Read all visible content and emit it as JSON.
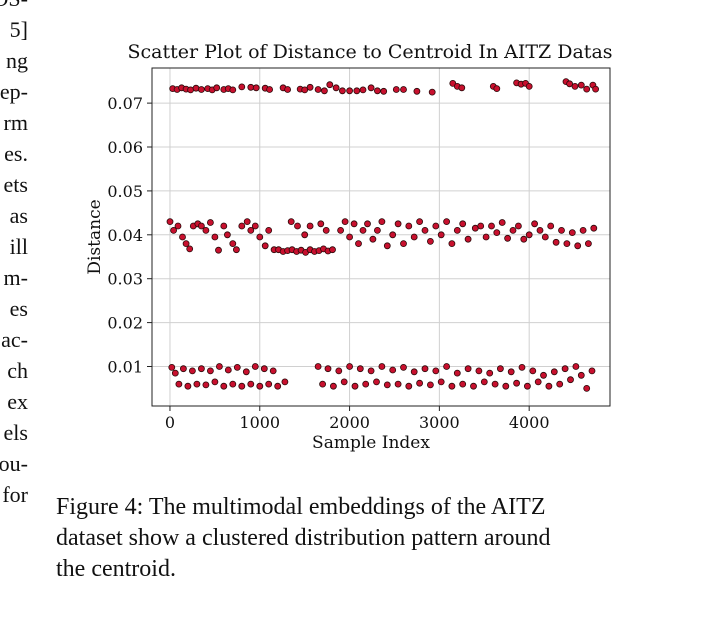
{
  "left_column_fragments": [
    "OS-",
    "5]",
    "ng",
    "ep-",
    "rm",
    "es.",
    "ets",
    "as",
    "ill",
    "m-",
    "es",
    "ac-",
    "ch",
    "ex",
    "els",
    "ou-",
    "for"
  ],
  "figure": {
    "caption_lines": [
      "Figure 4: The multimodal embeddings of the AITZ",
      "dataset show a clustered distribution pattern around",
      "the centroid."
    ]
  },
  "chart_data": {
    "type": "scatter",
    "title": "Scatter Plot of Distance to Centroid In AITZ Datas",
    "xlabel": "Sample Index",
    "ylabel": "Distance",
    "xlim": [
      -200,
      4900
    ],
    "ylim": [
      0.001,
      0.078
    ],
    "xticks": [
      0,
      1000,
      2000,
      3000,
      4000
    ],
    "xtick_labels": [
      "0",
      "1000",
      "2000",
      "3000",
      "4000"
    ],
    "yticks": [
      0.01,
      0.02,
      0.03,
      0.04,
      0.05,
      0.06,
      0.07
    ],
    "ytick_labels": [
      "0.01",
      "0.02",
      "0.03",
      "0.04",
      "0.05",
      "0.06",
      "0.07"
    ],
    "grid": true,
    "colors": {
      "marker_fill": "#c8102e",
      "marker_edge": "#2a0a0a",
      "grid": "#d0d0d0"
    },
    "series": [
      {
        "points": [
          [
            30,
            0.0733
          ],
          [
            80,
            0.0731
          ],
          [
            130,
            0.0735
          ],
          [
            180,
            0.0732
          ],
          [
            230,
            0.073
          ],
          [
            290,
            0.0734
          ],
          [
            350,
            0.0731
          ],
          [
            420,
            0.0733
          ],
          [
            470,
            0.073
          ],
          [
            520,
            0.0735
          ],
          [
            600,
            0.0731
          ],
          [
            650,
            0.0733
          ],
          [
            700,
            0.073
          ],
          [
            800,
            0.0737
          ],
          [
            900,
            0.0736
          ],
          [
            960,
            0.0735
          ],
          [
            1060,
            0.0734
          ],
          [
            1110,
            0.0731
          ],
          [
            1260,
            0.0735
          ],
          [
            1310,
            0.0731
          ],
          [
            1450,
            0.0732
          ],
          [
            1500,
            0.073
          ],
          [
            1560,
            0.0736
          ],
          [
            1650,
            0.0731
          ],
          [
            1720,
            0.0728
          ],
          [
            1780,
            0.0742
          ],
          [
            1850,
            0.0735
          ],
          [
            1920,
            0.0728
          ],
          [
            2000,
            0.0728
          ],
          [
            2080,
            0.0728
          ],
          [
            2150,
            0.073
          ],
          [
            2240,
            0.0735
          ],
          [
            2310,
            0.0728
          ],
          [
            2380,
            0.0727
          ],
          [
            2520,
            0.0731
          ],
          [
            2600,
            0.0731
          ],
          [
            2750,
            0.0727
          ],
          [
            2920,
            0.0725
          ],
          [
            3150,
            0.0745
          ],
          [
            3200,
            0.0738
          ],
          [
            3250,
            0.0735
          ],
          [
            3600,
            0.0738
          ],
          [
            3640,
            0.0733
          ],
          [
            3860,
            0.0746
          ],
          [
            3910,
            0.0743
          ],
          [
            3960,
            0.0745
          ],
          [
            4000,
            0.0738
          ],
          [
            4410,
            0.0749
          ],
          [
            4450,
            0.0744
          ],
          [
            4510,
            0.0738
          ],
          [
            4580,
            0.0741
          ],
          [
            4640,
            0.0732
          ],
          [
            4710,
            0.0741
          ],
          [
            4740,
            0.0732
          ],
          [
            0,
            0.043
          ],
          [
            40,
            0.041
          ],
          [
            90,
            0.042
          ],
          [
            140,
            0.0395
          ],
          [
            180,
            0.038
          ],
          [
            220,
            0.0368
          ],
          [
            260,
            0.042
          ],
          [
            310,
            0.0425
          ],
          [
            350,
            0.042
          ],
          [
            400,
            0.041
          ],
          [
            450,
            0.0428
          ],
          [
            500,
            0.0395
          ],
          [
            540,
            0.0365
          ],
          [
            600,
            0.042
          ],
          [
            640,
            0.04
          ],
          [
            700,
            0.038
          ],
          [
            740,
            0.0366
          ],
          [
            800,
            0.042
          ],
          [
            860,
            0.043
          ],
          [
            900,
            0.041
          ],
          [
            950,
            0.042
          ],
          [
            1000,
            0.0395
          ],
          [
            1060,
            0.0375
          ],
          [
            1100,
            0.041
          ],
          [
            1160,
            0.0366
          ],
          [
            1210,
            0.0366
          ],
          [
            1260,
            0.0362
          ],
          [
            1310,
            0.0364
          ],
          [
            1360,
            0.0366
          ],
          [
            1410,
            0.0362
          ],
          [
            1460,
            0.0365
          ],
          [
            1510,
            0.036
          ],
          [
            1560,
            0.0366
          ],
          [
            1610,
            0.0362
          ],
          [
            1660,
            0.0364
          ],
          [
            1710,
            0.0368
          ],
          [
            1760,
            0.0363
          ],
          [
            1810,
            0.0366
          ],
          [
            1350,
            0.043
          ],
          [
            1420,
            0.042
          ],
          [
            1500,
            0.04
          ],
          [
            1560,
            0.042
          ],
          [
            1680,
            0.0425
          ],
          [
            1740,
            0.041
          ],
          [
            1900,
            0.041
          ],
          [
            1950,
            0.043
          ],
          [
            2000,
            0.0395
          ],
          [
            2050,
            0.0425
          ],
          [
            2100,
            0.038
          ],
          [
            2150,
            0.041
          ],
          [
            2200,
            0.0425
          ],
          [
            2260,
            0.039
          ],
          [
            2310,
            0.041
          ],
          [
            2360,
            0.043
          ],
          [
            2420,
            0.0375
          ],
          [
            2480,
            0.04
          ],
          [
            2540,
            0.0425
          ],
          [
            2600,
            0.038
          ],
          [
            2660,
            0.042
          ],
          [
            2720,
            0.0395
          ],
          [
            2780,
            0.043
          ],
          [
            2840,
            0.041
          ],
          [
            2900,
            0.0385
          ],
          [
            2960,
            0.042
          ],
          [
            3020,
            0.04
          ],
          [
            3080,
            0.043
          ],
          [
            3140,
            0.038
          ],
          [
            3200,
            0.041
          ],
          [
            3260,
            0.0425
          ],
          [
            3320,
            0.039
          ],
          [
            3400,
            0.0415
          ],
          [
            3460,
            0.042
          ],
          [
            3520,
            0.0395
          ],
          [
            3580,
            0.042
          ],
          [
            3640,
            0.0405
          ],
          [
            3700,
            0.0428
          ],
          [
            3760,
            0.0392
          ],
          [
            3820,
            0.041
          ],
          [
            3880,
            0.042
          ],
          [
            3940,
            0.039
          ],
          [
            4000,
            0.04
          ],
          [
            4060,
            0.0425
          ],
          [
            4120,
            0.041
          ],
          [
            4180,
            0.0395
          ],
          [
            4240,
            0.042
          ],
          [
            4300,
            0.0383
          ],
          [
            4360,
            0.041
          ],
          [
            4420,
            0.038
          ],
          [
            4480,
            0.0405
          ],
          [
            4540,
            0.0375
          ],
          [
            4600,
            0.041
          ],
          [
            4660,
            0.038
          ],
          [
            4720,
            0.0415
          ],
          [
            20,
            0.0098
          ],
          [
            60,
            0.0085
          ],
          [
            100,
            0.006
          ],
          [
            150,
            0.0095
          ],
          [
            200,
            0.0055
          ],
          [
            250,
            0.009
          ],
          [
            300,
            0.006
          ],
          [
            350,
            0.0095
          ],
          [
            400,
            0.0058
          ],
          [
            450,
            0.009
          ],
          [
            500,
            0.0065
          ],
          [
            550,
            0.01
          ],
          [
            600,
            0.0055
          ],
          [
            650,
            0.0092
          ],
          [
            700,
            0.006
          ],
          [
            750,
            0.0098
          ],
          [
            800,
            0.0055
          ],
          [
            850,
            0.0088
          ],
          [
            900,
            0.006
          ],
          [
            950,
            0.01
          ],
          [
            1000,
            0.0055
          ],
          [
            1050,
            0.0095
          ],
          [
            1100,
            0.006
          ],
          [
            1150,
            0.009
          ],
          [
            1200,
            0.0055
          ],
          [
            1280,
            0.0065
          ],
          [
            1650,
            0.01
          ],
          [
            1700,
            0.006
          ],
          [
            1760,
            0.0095
          ],
          [
            1820,
            0.0055
          ],
          [
            1880,
            0.009
          ],
          [
            1940,
            0.0065
          ],
          [
            2000,
            0.01
          ],
          [
            2060,
            0.0055
          ],
          [
            2120,
            0.0095
          ],
          [
            2180,
            0.006
          ],
          [
            2240,
            0.009
          ],
          [
            2300,
            0.0065
          ],
          [
            2360,
            0.01
          ],
          [
            2420,
            0.0058
          ],
          [
            2480,
            0.0092
          ],
          [
            2540,
            0.006
          ],
          [
            2600,
            0.0098
          ],
          [
            2660,
            0.0055
          ],
          [
            2720,
            0.0088
          ],
          [
            2780,
            0.0062
          ],
          [
            2840,
            0.0095
          ],
          [
            2900,
            0.0058
          ],
          [
            2960,
            0.009
          ],
          [
            3020,
            0.0065
          ],
          [
            3080,
            0.01
          ],
          [
            3140,
            0.0055
          ],
          [
            3200,
            0.0085
          ],
          [
            3260,
            0.006
          ],
          [
            3320,
            0.0095
          ],
          [
            3380,
            0.0055
          ],
          [
            3440,
            0.009
          ],
          [
            3500,
            0.0065
          ],
          [
            3560,
            0.0085
          ],
          [
            3620,
            0.006
          ],
          [
            3680,
            0.0095
          ],
          [
            3740,
            0.0055
          ],
          [
            3800,
            0.0088
          ],
          [
            3860,
            0.0062
          ],
          [
            3920,
            0.0098
          ],
          [
            3980,
            0.0055
          ],
          [
            4040,
            0.009
          ],
          [
            4100,
            0.0065
          ],
          [
            4160,
            0.008
          ],
          [
            4220,
            0.0055
          ],
          [
            4280,
            0.0088
          ],
          [
            4340,
            0.006
          ],
          [
            4400,
            0.0095
          ],
          [
            4460,
            0.007
          ],
          [
            4520,
            0.01
          ],
          [
            4580,
            0.008
          ],
          [
            4640,
            0.005
          ],
          [
            4700,
            0.009
          ]
        ]
      }
    ]
  }
}
